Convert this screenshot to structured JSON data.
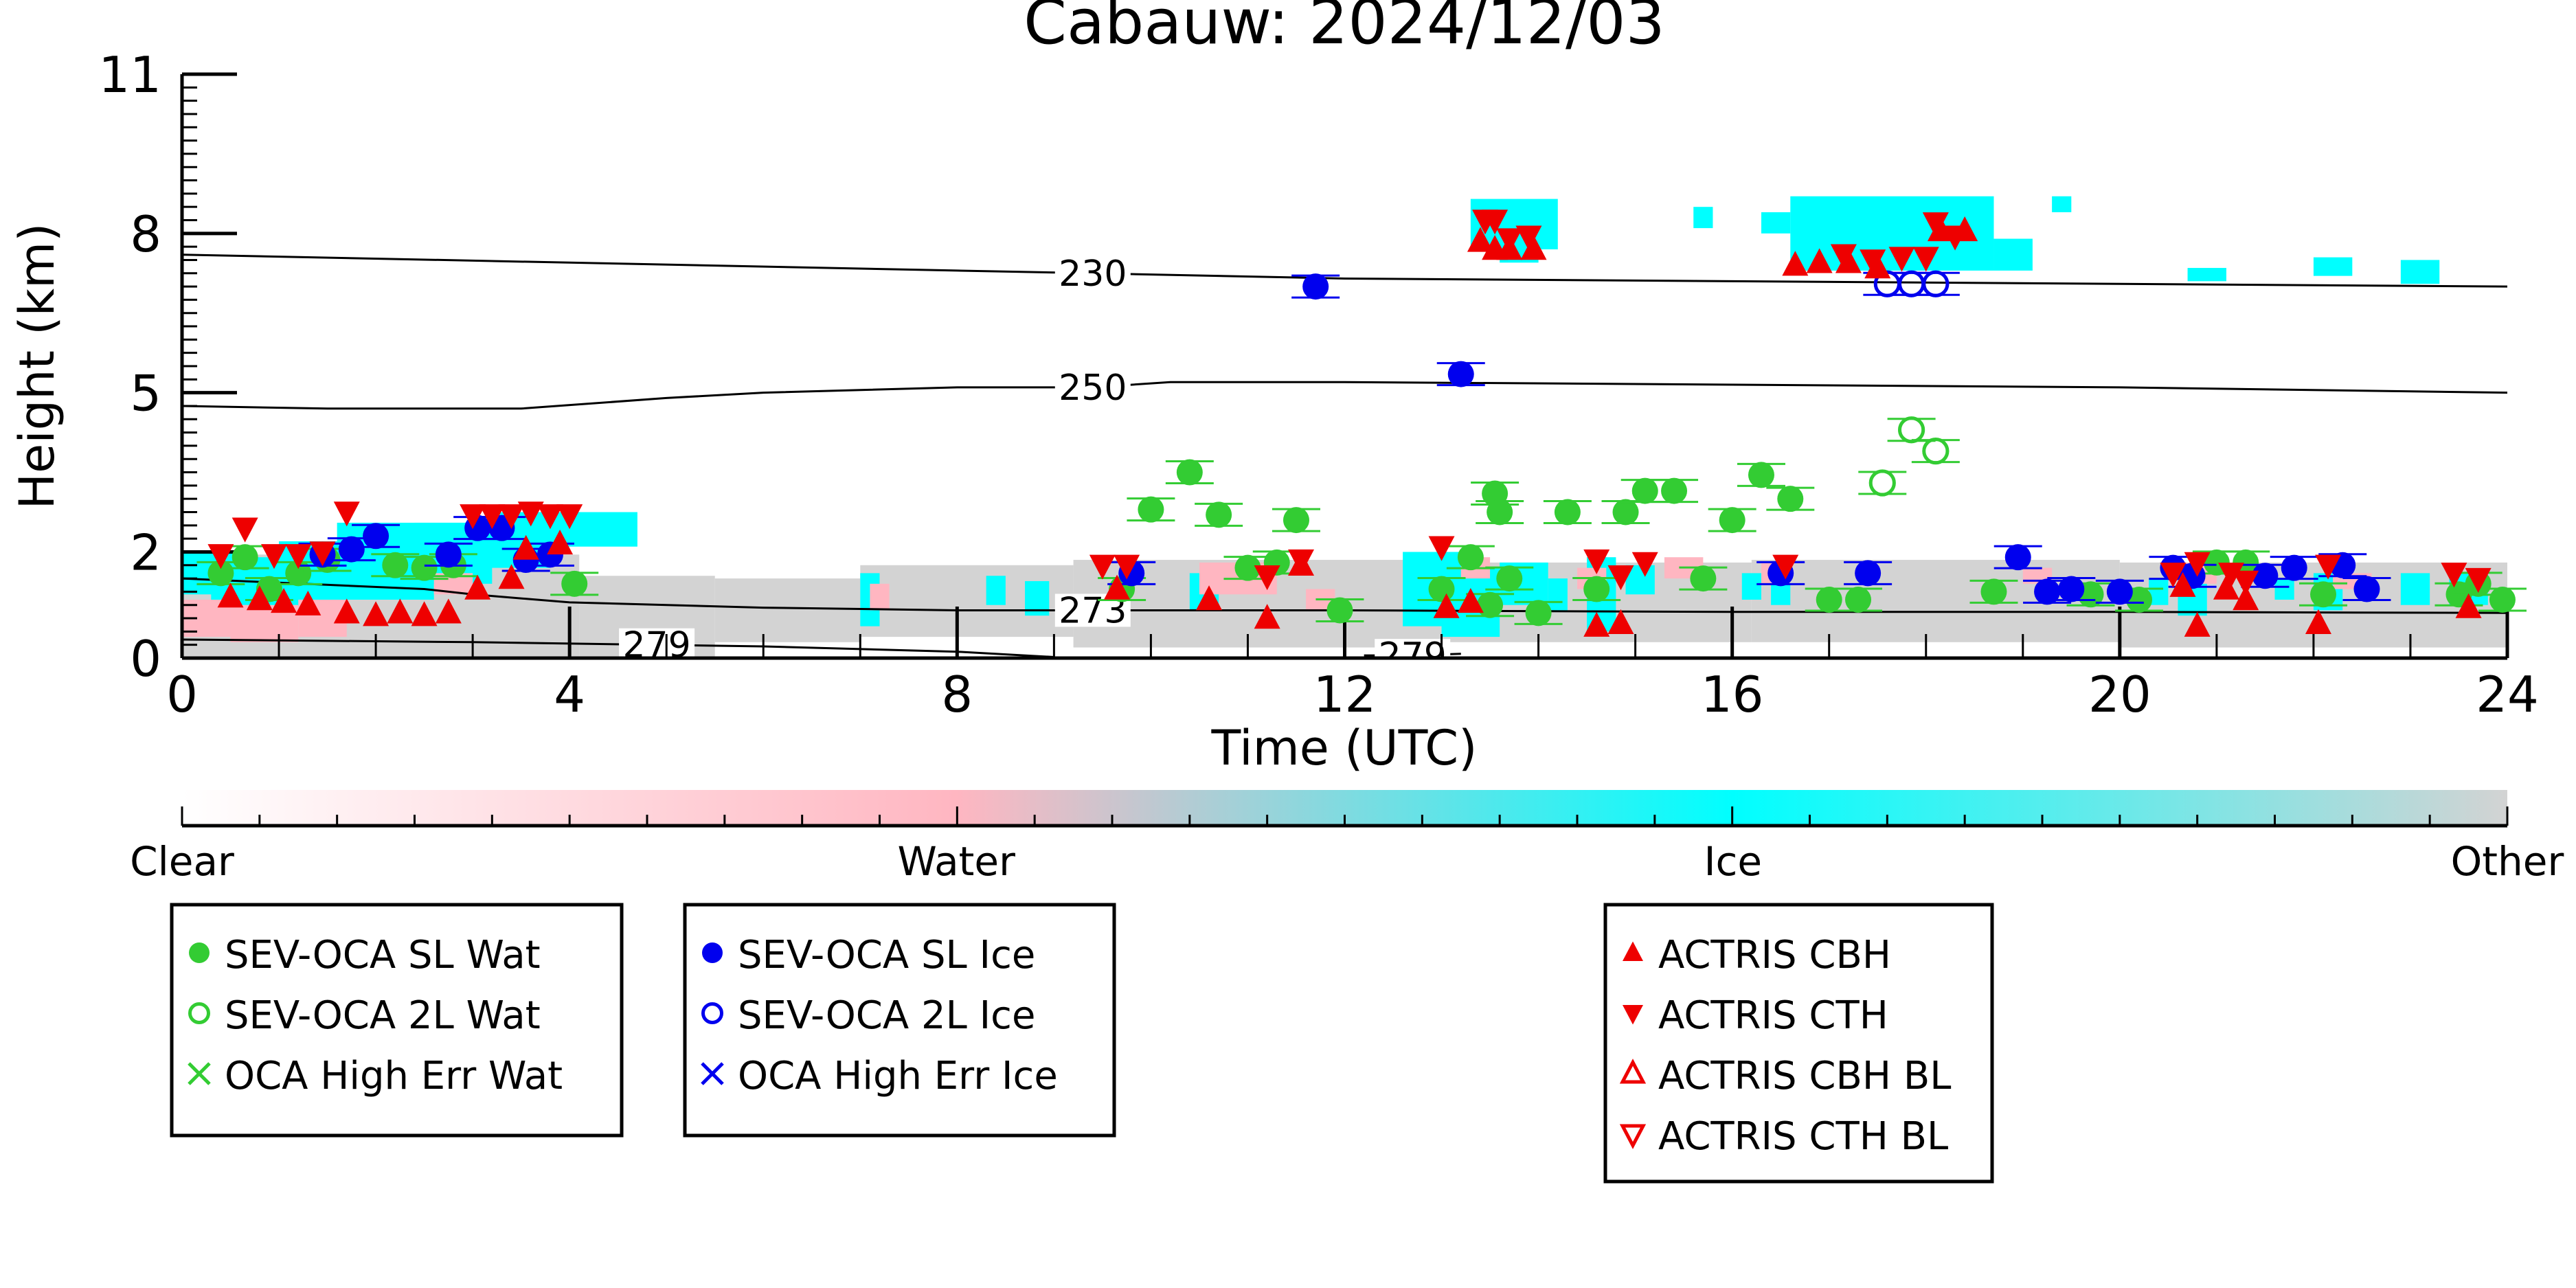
{
  "chart_data": {
    "type": "scatter",
    "title": "Cabauw: 2024/12/03",
    "xlabel": "Time (UTC)",
    "ylabel": "Height (km)",
    "xlim": [
      0,
      24
    ],
    "ylim": [
      0,
      11
    ],
    "xticks": [
      0,
      4,
      8,
      12,
      16,
      20,
      24
    ],
    "yticks": [
      {
        "label": "0",
        "v": 0
      },
      {
        "label": "2",
        "v": 2
      },
      {
        "label": "5",
        "v": 5
      },
      {
        "label": "8",
        "v": 8
      },
      {
        "label": "11",
        "v": 11
      }
    ],
    "colorbar": {
      "labels": [
        {
          "text": "Clear",
          "pos": 0.0
        },
        {
          "text": "Water",
          "pos": 0.333
        },
        {
          "text": "Ice",
          "pos": 0.667
        },
        {
          "text": "Other",
          "pos": 1.0
        }
      ],
      "colors": [
        "#ffffff",
        "#ffb6c1",
        "#00ffff",
        "#d3d3d3"
      ]
    },
    "contours": [
      {
        "label": "230",
        "label_x": 9.4,
        "points": [
          [
            0,
            7.6
          ],
          [
            4,
            7.45
          ],
          [
            8,
            7.3
          ],
          [
            9.4,
            7.25
          ],
          [
            12,
            7.15
          ],
          [
            16,
            7.1
          ],
          [
            20,
            7.05
          ],
          [
            24,
            7.0
          ]
        ]
      },
      {
        "label": "250",
        "label_x": 9.4,
        "points": [
          [
            0,
            4.75
          ],
          [
            1.5,
            4.7
          ],
          [
            3.5,
            4.7
          ],
          [
            5,
            4.9
          ],
          [
            6,
            5.0
          ],
          [
            8,
            5.1
          ],
          [
            9.4,
            5.1
          ],
          [
            10.2,
            5.2
          ],
          [
            12,
            5.2
          ],
          [
            16,
            5.15
          ],
          [
            20,
            5.1
          ],
          [
            24,
            5.0
          ]
        ]
      },
      {
        "label": "273",
        "label_x": 9.4,
        "points": [
          [
            0,
            1.5
          ],
          [
            2.5,
            1.3
          ],
          [
            3,
            1.2
          ],
          [
            4,
            1.05
          ],
          [
            6,
            0.95
          ],
          [
            8,
            0.9
          ],
          [
            9.4,
            0.9
          ],
          [
            12,
            0.9
          ],
          [
            16,
            0.87
          ],
          [
            20,
            0.87
          ],
          [
            24,
            0.85
          ]
        ]
      },
      {
        "label": "279",
        "label_x": 4.9,
        "points": [
          [
            0,
            0.35
          ],
          [
            3,
            0.3
          ],
          [
            4.9,
            0.25
          ],
          [
            6,
            0.22
          ],
          [
            8,
            0.12
          ],
          [
            9,
            0.02
          ]
        ]
      },
      {
        "label": "279",
        "label_x": 12.7,
        "points": [
          [
            12.2,
            0.05
          ],
          [
            12.7,
            0.05
          ],
          [
            13.2,
            0.08
          ]
        ]
      }
    ],
    "series": [
      {
        "name": "SEV-OCA SL Wat",
        "color": "#33cc33",
        "marker": "circle-filled",
        "points": [
          [
            0.4,
            1.6
          ],
          [
            0.65,
            1.9
          ],
          [
            0.9,
            1.3
          ],
          [
            1.2,
            1.6
          ],
          [
            1.5,
            1.85
          ],
          [
            2.2,
            1.75
          ],
          [
            2.5,
            1.7
          ],
          [
            2.8,
            1.75
          ],
          [
            4.05,
            1.4
          ],
          [
            9.7,
            1.3
          ],
          [
            10.0,
            2.8
          ],
          [
            10.4,
            3.5
          ],
          [
            10.7,
            2.7
          ],
          [
            11.0,
            1.7
          ],
          [
            11.3,
            1.8
          ],
          [
            11.5,
            2.6
          ],
          [
            11.95,
            0.9
          ],
          [
            13.0,
            1.3
          ],
          [
            13.3,
            1.9
          ],
          [
            13.5,
            1.0
          ],
          [
            13.55,
            3.1
          ],
          [
            13.6,
            2.75
          ],
          [
            13.7,
            1.5
          ],
          [
            14.0,
            0.85
          ],
          [
            14.3,
            2.75
          ],
          [
            14.6,
            1.3
          ],
          [
            14.9,
            2.75
          ],
          [
            15.1,
            3.15
          ],
          [
            15.4,
            3.15
          ],
          [
            15.7,
            1.5
          ],
          [
            16.0,
            2.6
          ],
          [
            16.3,
            3.45
          ],
          [
            16.6,
            3.0
          ],
          [
            17.0,
            1.1
          ],
          [
            17.3,
            1.1
          ],
          [
            18.7,
            1.25
          ],
          [
            19.7,
            1.2
          ],
          [
            20.2,
            1.1
          ],
          [
            21.0,
            1.8
          ],
          [
            21.3,
            1.8
          ],
          [
            22.1,
            1.2
          ],
          [
            23.5,
            1.2
          ],
          [
            23.7,
            1.4
          ],
          [
            23.95,
            1.1
          ]
        ]
      },
      {
        "name": "SEV-OCA 2L Wat",
        "color": "#33cc33",
        "marker": "circle-open",
        "points": [
          [
            17.55,
            3.3
          ],
          [
            17.85,
            4.3
          ],
          [
            18.1,
            3.9
          ]
        ]
      },
      {
        "name": "OCA High Err Wat",
        "color": "#33cc33",
        "marker": "x",
        "points": []
      },
      {
        "name": "SEV-OCA SL Ice",
        "color": "#0000ee",
        "marker": "circle-filled",
        "points": [
          [
            1.45,
            1.95
          ],
          [
            1.75,
            2.05
          ],
          [
            2.0,
            2.3
          ],
          [
            2.75,
            1.95
          ],
          [
            3.05,
            2.45
          ],
          [
            3.3,
            2.45
          ],
          [
            3.55,
            1.85
          ],
          [
            3.8,
            1.95
          ],
          [
            9.8,
            1.6
          ],
          [
            11.7,
            7.0
          ],
          [
            13.2,
            5.35
          ],
          [
            16.5,
            1.6
          ],
          [
            17.4,
            1.6
          ],
          [
            18.95,
            1.9
          ],
          [
            19.25,
            1.25
          ],
          [
            19.5,
            1.3
          ],
          [
            20.0,
            1.25
          ],
          [
            20.55,
            1.7
          ],
          [
            20.75,
            1.55
          ],
          [
            21.5,
            1.55
          ],
          [
            21.8,
            1.7
          ],
          [
            22.3,
            1.75
          ],
          [
            22.55,
            1.3
          ]
        ]
      },
      {
        "name": "SEV-OCA 2L Ice",
        "color": "#0000ee",
        "marker": "circle-open",
        "points": [
          [
            17.6,
            7.05
          ],
          [
            17.85,
            7.05
          ],
          [
            18.1,
            7.05
          ]
        ]
      },
      {
        "name": "OCA High Err Ice",
        "color": "#0000ee",
        "marker": "x",
        "points": []
      },
      {
        "name": "ACTRIS CBH",
        "color": "#ee0000",
        "marker": "triangle-up",
        "points": [
          [
            0.5,
            1.15
          ],
          [
            0.8,
            1.1
          ],
          [
            1.05,
            1.05
          ],
          [
            1.3,
            1.0
          ],
          [
            1.7,
            0.85
          ],
          [
            2.0,
            0.8
          ],
          [
            2.25,
            0.85
          ],
          [
            2.5,
            0.8
          ],
          [
            2.75,
            0.85
          ],
          [
            3.05,
            1.3
          ],
          [
            3.4,
            1.5
          ],
          [
            3.55,
            2.05
          ],
          [
            3.9,
            2.15
          ],
          [
            9.65,
            1.3
          ],
          [
            10.6,
            1.1
          ],
          [
            11.2,
            0.75
          ],
          [
            11.55,
            1.75
          ],
          [
            13.05,
            0.95
          ],
          [
            13.3,
            1.05
          ],
          [
            13.4,
            7.85
          ],
          [
            13.55,
            7.7
          ],
          [
            13.7,
            7.7
          ],
          [
            13.95,
            7.7
          ],
          [
            14.6,
            0.6
          ],
          [
            14.85,
            0.65
          ],
          [
            16.65,
            7.4
          ],
          [
            16.9,
            7.45
          ],
          [
            17.2,
            7.45
          ],
          [
            17.5,
            7.35
          ],
          [
            18.15,
            8.05
          ],
          [
            18.4,
            8.05
          ],
          [
            20.65,
            1.35
          ],
          [
            20.8,
            0.6
          ],
          [
            21.1,
            1.3
          ],
          [
            21.3,
            1.1
          ],
          [
            22.05,
            0.65
          ],
          [
            23.6,
            0.95
          ]
        ]
      },
      {
        "name": "ACTRIS CTH",
        "color": "#ee0000",
        "marker": "triangle-down",
        "points": [
          [
            0.4,
            1.95
          ],
          [
            0.65,
            2.45
          ],
          [
            0.95,
            1.95
          ],
          [
            1.2,
            1.95
          ],
          [
            1.45,
            2.0
          ],
          [
            1.7,
            2.75
          ],
          [
            3.0,
            2.7
          ],
          [
            3.2,
            2.7
          ],
          [
            3.4,
            2.7
          ],
          [
            3.6,
            2.75
          ],
          [
            3.8,
            2.7
          ],
          [
            4.0,
            2.7
          ],
          [
            9.5,
            1.75
          ],
          [
            9.75,
            1.75
          ],
          [
            11.2,
            1.55
          ],
          [
            11.55,
            1.85
          ],
          [
            13.0,
            2.1
          ],
          [
            13.45,
            8.25
          ],
          [
            13.55,
            8.25
          ],
          [
            13.7,
            7.9
          ],
          [
            13.9,
            7.95
          ],
          [
            14.6,
            1.85
          ],
          [
            14.85,
            1.55
          ],
          [
            15.1,
            1.8
          ],
          [
            16.55,
            1.75
          ],
          [
            17.15,
            7.6
          ],
          [
            17.45,
            7.5
          ],
          [
            17.75,
            7.55
          ],
          [
            18.0,
            7.55
          ],
          [
            18.1,
            8.2
          ],
          [
            18.3,
            7.95
          ],
          [
            20.55,
            1.6
          ],
          [
            20.8,
            1.8
          ],
          [
            21.15,
            1.6
          ],
          [
            21.3,
            1.45
          ],
          [
            22.15,
            1.75
          ],
          [
            23.45,
            1.6
          ],
          [
            23.7,
            1.5
          ]
        ]
      },
      {
        "name": "ACTRIS CBH BL",
        "color": "#ee0000",
        "marker": "triangle-up-open",
        "points": []
      },
      {
        "name": "ACTRIS CTH BL",
        "color": "#ee0000",
        "marker": "triangle-down-open",
        "points": []
      }
    ],
    "legend_groups": [
      [
        "SEV-OCA SL Wat",
        "SEV-OCA 2L Wat",
        "OCA High Err Wat"
      ],
      [
        "SEV-OCA SL Ice",
        "SEV-OCA 2L Ice",
        "OCA High Err Ice"
      ],
      [
        "ACTRIS CBH",
        "ACTRIS CTH",
        "ACTRIS CBH BL",
        "ACTRIS CTH BL"
      ]
    ],
    "legend_placement": "below",
    "grid": false
  }
}
